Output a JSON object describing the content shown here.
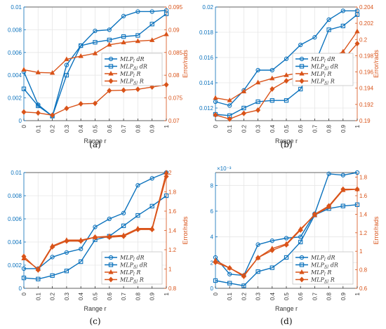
{
  "colors": {
    "blue": "#0b72bd",
    "orange": "#d95319",
    "axis": "#333333",
    "grid": "#e6e6e6"
  },
  "chart_data": [
    {
      "type": "line",
      "panel_label": "(a)",
      "xlabel": "Range r",
      "ylabel_right": "Error/rads",
      "x": [
        0,
        0.1,
        0.2,
        0.3,
        0.4,
        0.5,
        0.6,
        0.7,
        0.8,
        0.9,
        1
      ],
      "x_ticks": [
        "0",
        "0.1",
        "0.2",
        "0.3",
        "0.4",
        "0.5",
        "0.6",
        "0.7",
        "0.8",
        "0.9",
        "1"
      ],
      "ylim_left": [
        0,
        0.01
      ],
      "yticks_left": [
        "0",
        "0.002",
        "0.004",
        "0.006",
        "0.008",
        "0.01"
      ],
      "ylim_right": [
        0.07,
        0.095
      ],
      "yticks_right": [
        "0.07",
        "0.075",
        "0.08",
        "0.085",
        "0.09",
        "0.095"
      ],
      "grid": true,
      "legend_position": "center-right",
      "series": [
        {
          "name": "MLP_l dR",
          "axis": "left",
          "marker": "circle",
          "color": "#0b72bd",
          "values": [
            0.0043,
            0.0014,
            0.0004,
            0.0049,
            0.0066,
            0.0079,
            0.008,
            0.0092,
            0.0096,
            0.0096,
            0.0097
          ]
        },
        {
          "name": "MLP_Δl dR",
          "axis": "left",
          "marker": "square",
          "color": "#0b72bd",
          "values": [
            0.0028,
            0.0013,
            0.0004,
            0.004,
            0.0066,
            0.0069,
            0.0071,
            0.0074,
            0.0075,
            0.0085,
            0.0094
          ]
        },
        {
          "name": "MLP_l R",
          "axis": "right",
          "marker": "triangle",
          "color": "#d95319",
          "values": [
            0.0812,
            0.0806,
            0.0805,
            0.0835,
            0.0842,
            0.0848,
            0.0867,
            0.0872,
            0.0875,
            0.0877,
            0.089
          ]
        },
        {
          "name": "MLP_Δl R",
          "axis": "right",
          "marker": "diamond",
          "color": "#d95319",
          "values": [
            0.0719,
            0.0717,
            0.0712,
            0.0727,
            0.0737,
            0.0738,
            0.0766,
            0.0767,
            0.0769,
            0.0774,
            0.0779
          ]
        }
      ]
    },
    {
      "type": "line",
      "panel_label": "(b)",
      "xlabel": "Range r",
      "ylabel_right": "Error/rads",
      "x": [
        0,
        0.1,
        0.2,
        0.3,
        0.4,
        0.5,
        0.6,
        0.7,
        0.8,
        0.9,
        1
      ],
      "x_ticks": [
        "0",
        "0.1",
        "0.2",
        "0.3",
        "0.4",
        "0.5",
        "0.6",
        "0.7",
        "0.8",
        "0.9",
        "1"
      ],
      "ylim_left": [
        0.011,
        0.02
      ],
      "yticks_left": [
        "0.012",
        "0.014",
        "0.016",
        "0.018",
        "0.02"
      ],
      "ylim_right": [
        0.19,
        0.204
      ],
      "yticks_right": [
        "0.19",
        "0.192",
        "0.194",
        "0.196",
        "0.198",
        "0.2",
        "0.202",
        "0.204"
      ],
      "grid": true,
      "legend_position": "center-right",
      "series": [
        {
          "name": "MLP_l dR",
          "axis": "left",
          "marker": "circle",
          "color": "#0b72bd",
          "values": [
            0.0125,
            0.0122,
            0.0134,
            0.015,
            0.015,
            0.0159,
            0.017,
            0.0176,
            0.019,
            0.0197,
            0.0197
          ]
        },
        {
          "name": "MLP_Δl dR",
          "axis": "left",
          "marker": "square",
          "color": "#0b72bd",
          "values": [
            0.0115,
            0.0114,
            0.012,
            0.0125,
            0.0126,
            0.0126,
            0.0135,
            0.0155,
            0.0182,
            0.0185,
            0.0194
          ]
        },
        {
          "name": "MLP_l R",
          "axis": "right",
          "marker": "triangle",
          "color": "#d95319",
          "values": [
            0.1928,
            0.1925,
            0.1936,
            0.1947,
            0.1952,
            0.1956,
            0.1959,
            0.1975,
            0.1976,
            0.1985,
            0.201
          ]
        },
        {
          "name": "MLP_Δl R",
          "axis": "right",
          "marker": "diamond",
          "color": "#d95319",
          "values": [
            0.1907,
            0.1902,
            0.1909,
            0.1913,
            0.1939,
            0.1949,
            0.1955,
            0.1957,
            0.1957,
            0.1975,
            0.1995
          ]
        }
      ]
    },
    {
      "type": "line",
      "panel_label": "(c)",
      "xlabel": "Range r",
      "ylabel_right": "Error/rads",
      "x": [
        0,
        0.1,
        0.2,
        0.3,
        0.4,
        0.5,
        0.6,
        0.7,
        0.8,
        0.9,
        1
      ],
      "x_ticks": [
        "0",
        "0.1",
        "0.2",
        "0.3",
        "0.4",
        "0.5",
        "0.6",
        "0.7",
        "0.8",
        "0.9",
        "1"
      ],
      "ylim_left": [
        0,
        0.01
      ],
      "yticks_left": [
        "0",
        "0.002",
        "0.004",
        "0.006",
        "0.008",
        "0.01"
      ],
      "ylim_right": [
        0.8,
        2
      ],
      "yticks_right": [
        "0.8",
        "1",
        "1.2",
        "1.4",
        "1.6",
        "1.8",
        "2"
      ],
      "grid": true,
      "legend_position": "bottom-right",
      "series": [
        {
          "name": "MLP_l dR",
          "axis": "left",
          "marker": "circle",
          "color": "#0b72bd",
          "values": [
            0.0017,
            0.0017,
            0.0027,
            0.0031,
            0.0034,
            0.0053,
            0.006,
            0.0065,
            0.0089,
            0.0095,
            0.01
          ]
        },
        {
          "name": "MLP_Δl dR",
          "axis": "left",
          "marker": "square",
          "color": "#0b72bd",
          "values": [
            0.0009,
            0.0008,
            0.0011,
            0.0015,
            0.0023,
            0.0042,
            0.0045,
            0.0054,
            0.0063,
            0.0071,
            0.008
          ]
        },
        {
          "name": "MLP_l R",
          "axis": "right",
          "marker": "triangle",
          "color": "#d95319",
          "values": [
            1.11,
            1.0,
            1.24,
            1.3,
            1.3,
            1.33,
            1.34,
            1.35,
            1.42,
            1.42,
            2.0
          ]
        },
        {
          "name": "MLP_Δl R",
          "axis": "right",
          "marker": "diamond",
          "color": "#d95319",
          "values": [
            1.13,
            0.99,
            1.23,
            1.29,
            1.29,
            1.33,
            1.33,
            1.34,
            1.41,
            1.41,
            1.96
          ]
        }
      ]
    },
    {
      "type": "line",
      "panel_label": "(d)",
      "xlabel": "Range r",
      "ylabel_right": "Error/rads",
      "y_exponent": "×10⁻³",
      "x": [
        0,
        0.1,
        0.2,
        0.3,
        0.4,
        0.5,
        0.6,
        0.7,
        0.8,
        0.9,
        1
      ],
      "x_ticks": [
        "0",
        "0.1",
        "0.2",
        "0.3",
        "0.4",
        "0.5",
        "0.6",
        "0.7",
        "0.8",
        "0.9",
        "1"
      ],
      "ylim_left": [
        0,
        9
      ],
      "yticks_left": [
        "0",
        "2",
        "4",
        "6",
        "8"
      ],
      "ylim_right": [
        0.6,
        1.85
      ],
      "yticks_right": [
        "0.6",
        "0.8",
        "1",
        "1.2",
        "1.4",
        "1.6",
        "1.8"
      ],
      "grid": true,
      "legend_position": "bottom-right",
      "series": [
        {
          "name": "MLP_l dR",
          "axis": "left",
          "marker": "circle",
          "color": "#0b72bd",
          "values": [
            2.4,
            1.1,
            1.0,
            3.4,
            3.7,
            3.9,
            4.0,
            5.8,
            8.9,
            8.8,
            9.0
          ]
        },
        {
          "name": "MLP_Δl dR",
          "axis": "left",
          "marker": "square",
          "color": "#0b72bd",
          "values": [
            0.6,
            0.4,
            0.2,
            1.3,
            1.6,
            2.4,
            3.6,
            5.7,
            6.2,
            6.4,
            6.5
          ]
        },
        {
          "name": "MLP_l R",
          "axis": "right",
          "marker": "triangle",
          "color": "#d95319",
          "values": [
            0.9,
            0.82,
            0.74,
            0.93,
            1.03,
            1.08,
            1.24,
            1.39,
            1.48,
            1.66,
            1.67
          ]
        },
        {
          "name": "MLP_Δl R",
          "axis": "right",
          "marker": "diamond",
          "color": "#d95319",
          "values": [
            0.88,
            0.82,
            0.73,
            0.93,
            1.01,
            1.07,
            1.23,
            1.4,
            1.49,
            1.67,
            1.67
          ]
        }
      ]
    }
  ]
}
